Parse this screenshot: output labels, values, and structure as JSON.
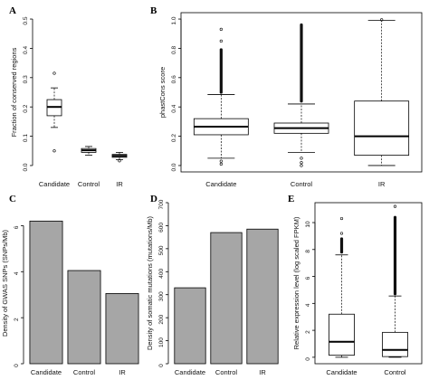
{
  "chart_data": [
    {
      "panel": "A",
      "type": "boxplot",
      "ylabel": "Fraction of conserved regions",
      "ylim": [
        0,
        0.5
      ],
      "yticks": [
        "0.0",
        "0.1",
        "0.2",
        "0.3",
        "0.4",
        "0.5"
      ],
      "categories": [
        "Candidate",
        "Control",
        "IR"
      ],
      "boxes": [
        {
          "min": 0.13,
          "q1": 0.17,
          "median": 0.2,
          "q3": 0.225,
          "max": 0.265,
          "outliers": [
            0.05,
            0.315
          ]
        },
        {
          "min": 0.035,
          "q1": 0.045,
          "median": 0.052,
          "q3": 0.058,
          "max": 0.065,
          "outliers": []
        },
        {
          "min": 0.02,
          "q1": 0.028,
          "median": 0.033,
          "q3": 0.038,
          "max": 0.045,
          "outliers": [
            0.016
          ]
        }
      ]
    },
    {
      "panel": "B",
      "type": "boxplot",
      "ylabel": "phastCons score",
      "ylim": [
        0,
        1.0
      ],
      "yticks": [
        "0.0",
        "0.2",
        "0.4",
        "0.6",
        "0.8",
        "1.0"
      ],
      "categories": [
        "Candidate",
        "Control",
        "IR"
      ],
      "boxes": [
        {
          "min": 0.05,
          "q1": 0.21,
          "median": 0.265,
          "q3": 0.32,
          "max": 0.485,
          "outlier_band": [
            0.49,
            0.8
          ],
          "outliers": [
            0.01,
            0.03,
            0.85,
            0.93
          ]
        },
        {
          "min": 0.09,
          "q1": 0.22,
          "median": 0.255,
          "q3": 0.29,
          "max": 0.42,
          "outlier_band": [
            0.43,
            0.97
          ],
          "outliers": [
            0.0,
            0.02,
            0.05
          ]
        },
        {
          "min": 0.0,
          "q1": 0.07,
          "median": 0.2,
          "q3": 0.44,
          "max": 0.99,
          "outlier_band": [],
          "outliers": [
            0.995
          ]
        }
      ]
    },
    {
      "panel": "C",
      "type": "bar",
      "ylabel": "Density of GWAS SNPs (SNPs/Mb)",
      "ylim": [
        0,
        7
      ],
      "yticks": [
        "0",
        "2",
        "4",
        "6"
      ],
      "categories": [
        "Candidate",
        "Control",
        "IR"
      ],
      "values": [
        6.2,
        4.05,
        3.05
      ]
    },
    {
      "panel": "D",
      "type": "bar",
      "ylabel": "Density of somatic mutations (mutations/Mb)",
      "ylim": [
        0,
        700
      ],
      "yticks": [
        "0",
        "100",
        "200",
        "300",
        "400",
        "500",
        "600",
        "700"
      ],
      "categories": [
        "Candidate",
        "Control",
        "IR"
      ],
      "values": [
        330,
        570,
        585
      ]
    },
    {
      "panel": "E",
      "type": "boxplot",
      "ylabel": "Relative expression level (log scaled FPKM)",
      "ylim": [
        0,
        11
      ],
      "yticks": [
        "0",
        "2",
        "4",
        "6",
        "8",
        "10"
      ],
      "categories": [
        "Candidate",
        "Control"
      ],
      "boxes": [
        {
          "min": 0.0,
          "q1": 0.15,
          "median": 1.15,
          "q3": 3.2,
          "max": 7.6,
          "outlier_band": [
            7.7,
            8.9
          ],
          "outliers": [
            9.2,
            10.3
          ]
        },
        {
          "min": 0.0,
          "q1": 0.05,
          "median": 0.55,
          "q3": 1.85,
          "max": 4.55,
          "outlier_band": [
            4.6,
            10.5
          ],
          "outliers": [
            11.2
          ]
        }
      ]
    }
  ]
}
